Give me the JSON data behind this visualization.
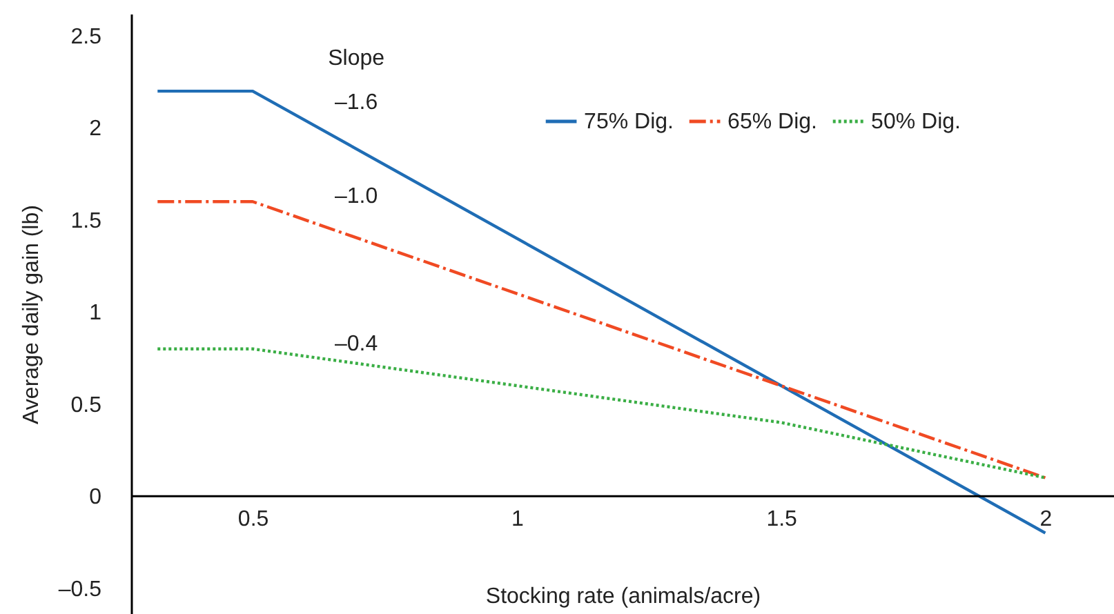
{
  "chart_data": {
    "type": "line",
    "xlabel": "Stocking rate (animals/acre)",
    "ylabel": "Average daily gain (lb)",
    "x": [
      0.32,
      0.5,
      2
    ],
    "series": [
      {
        "name": "75% Dig.",
        "color": "#1f6db5",
        "line_style": "solid",
        "values": [
          2.2,
          2.2,
          -0.2
        ]
      },
      {
        "name": "65% Dig.",
        "color": "#f04a23",
        "line_style": "dashed",
        "values": [
          1.6,
          1.6,
          0.1
        ]
      },
      {
        "name": "50% Dig.",
        "color": "#3aae45",
        "line_style": "dotted",
        "x": [
          0.32,
          0.5,
          1.5,
          1.75,
          2
        ],
        "values": [
          0.8,
          0.8,
          0.4,
          0.25,
          0.1
        ]
      }
    ],
    "xlim": [
      0.27,
      2.13
    ],
    "ylim": [
      -0.64,
      2.62
    ],
    "xticks": [
      0.5,
      1,
      1.5,
      2
    ],
    "yticks": [
      {
        "value": -0.5,
        "label": "–0.5"
      },
      0,
      0.5,
      1,
      1.5,
      2,
      2.5
    ],
    "annotations": [
      "Slope",
      "–1.6",
      "–1.0",
      "–0.4"
    ],
    "legend": "top right",
    "grid": false,
    "marker": "none"
  }
}
